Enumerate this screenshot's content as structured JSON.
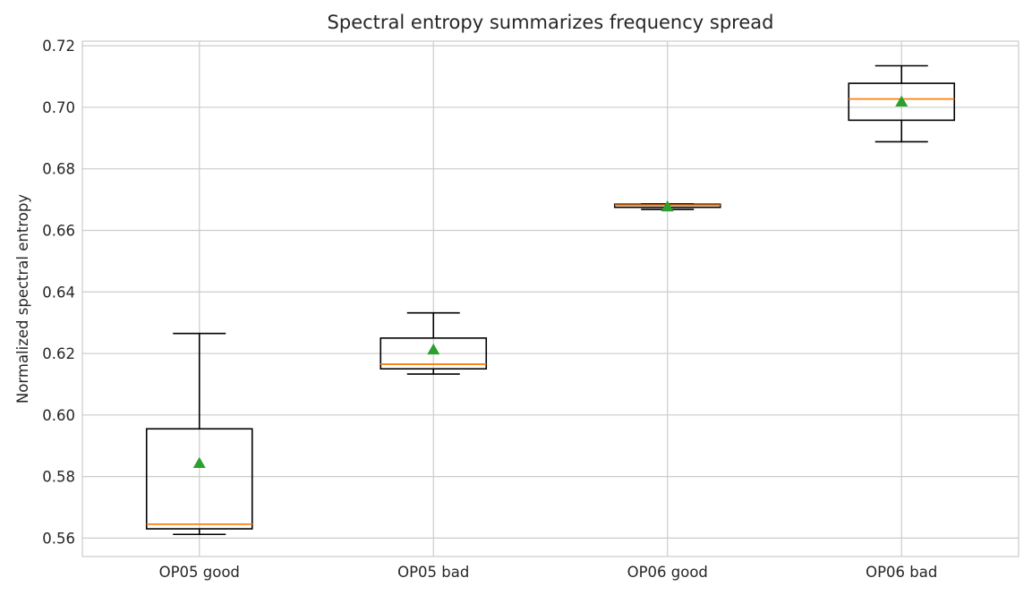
{
  "chart_data": {
    "type": "box",
    "title": "Spectral entropy summarizes frequency spread",
    "xlabel": "",
    "ylabel": "Normalized spectral entropy",
    "ylim": [
      0.554,
      0.7215
    ],
    "yticks": [
      "0.56",
      "0.58",
      "0.60",
      "0.62",
      "0.64",
      "0.66",
      "0.68",
      "0.70",
      "0.72"
    ],
    "grid": true,
    "categories": [
      "OP05 good",
      "OP05 bad",
      "OP06 good",
      "OP06 bad"
    ],
    "boxes": [
      {
        "whisker_low": 0.5612,
        "q1": 0.563,
        "median": 0.5645,
        "q3": 0.5955,
        "whisker_high": 0.6265,
        "mean": 0.5843
      },
      {
        "whisker_low": 0.6133,
        "q1": 0.615,
        "median": 0.6165,
        "q3": 0.625,
        "whisker_high": 0.6332,
        "mean": 0.6212
      },
      {
        "whisker_low": 0.6668,
        "q1": 0.6675,
        "median": 0.6682,
        "q3": 0.6685,
        "whisker_high": 0.6686,
        "mean": 0.6677
      },
      {
        "whisker_low": 0.6888,
        "q1": 0.6958,
        "median": 0.7027,
        "q3": 0.7078,
        "whisker_high": 0.7135,
        "mean": 0.7018
      }
    ],
    "colors": {
      "box": "#000000",
      "median": "#ff7f0e",
      "mean": "#2ca02c",
      "grid": "#cccccc",
      "frame": "#cccccc"
    }
  }
}
